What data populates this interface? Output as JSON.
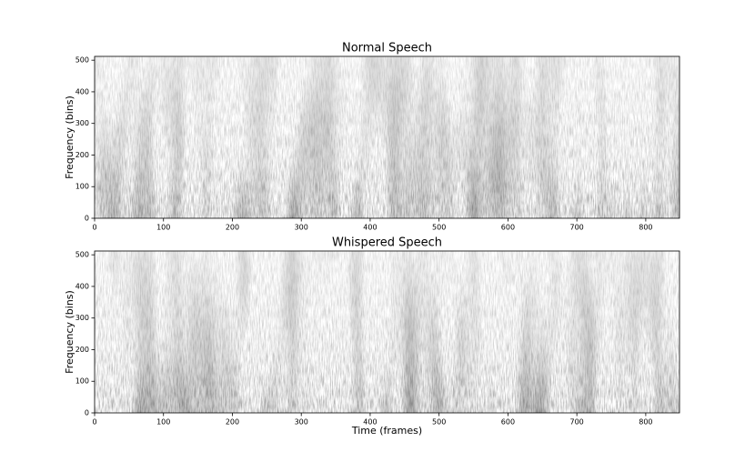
{
  "chart_data": [
    {
      "type": "spectrogram",
      "title": "Normal Speech",
      "ylabel": "Frequency (bins)",
      "xlim": [
        0,
        849
      ],
      "ylim": [
        0,
        512
      ],
      "xticks": [
        0,
        100,
        200,
        300,
        400,
        500,
        600,
        700,
        800
      ],
      "yticks": [
        0,
        100,
        200,
        300,
        400,
        500
      ]
    },
    {
      "type": "spectrogram",
      "title": "Whispered Speech",
      "ylabel": "Frequency (bins)",
      "xlabel": "Time (frames)",
      "xlim": [
        0,
        849
      ],
      "ylim": [
        0,
        512
      ],
      "xticks": [
        0,
        100,
        200,
        300,
        400,
        500,
        600,
        700,
        800
      ],
      "yticks": [
        0,
        100,
        200,
        300,
        400,
        500
      ]
    }
  ]
}
